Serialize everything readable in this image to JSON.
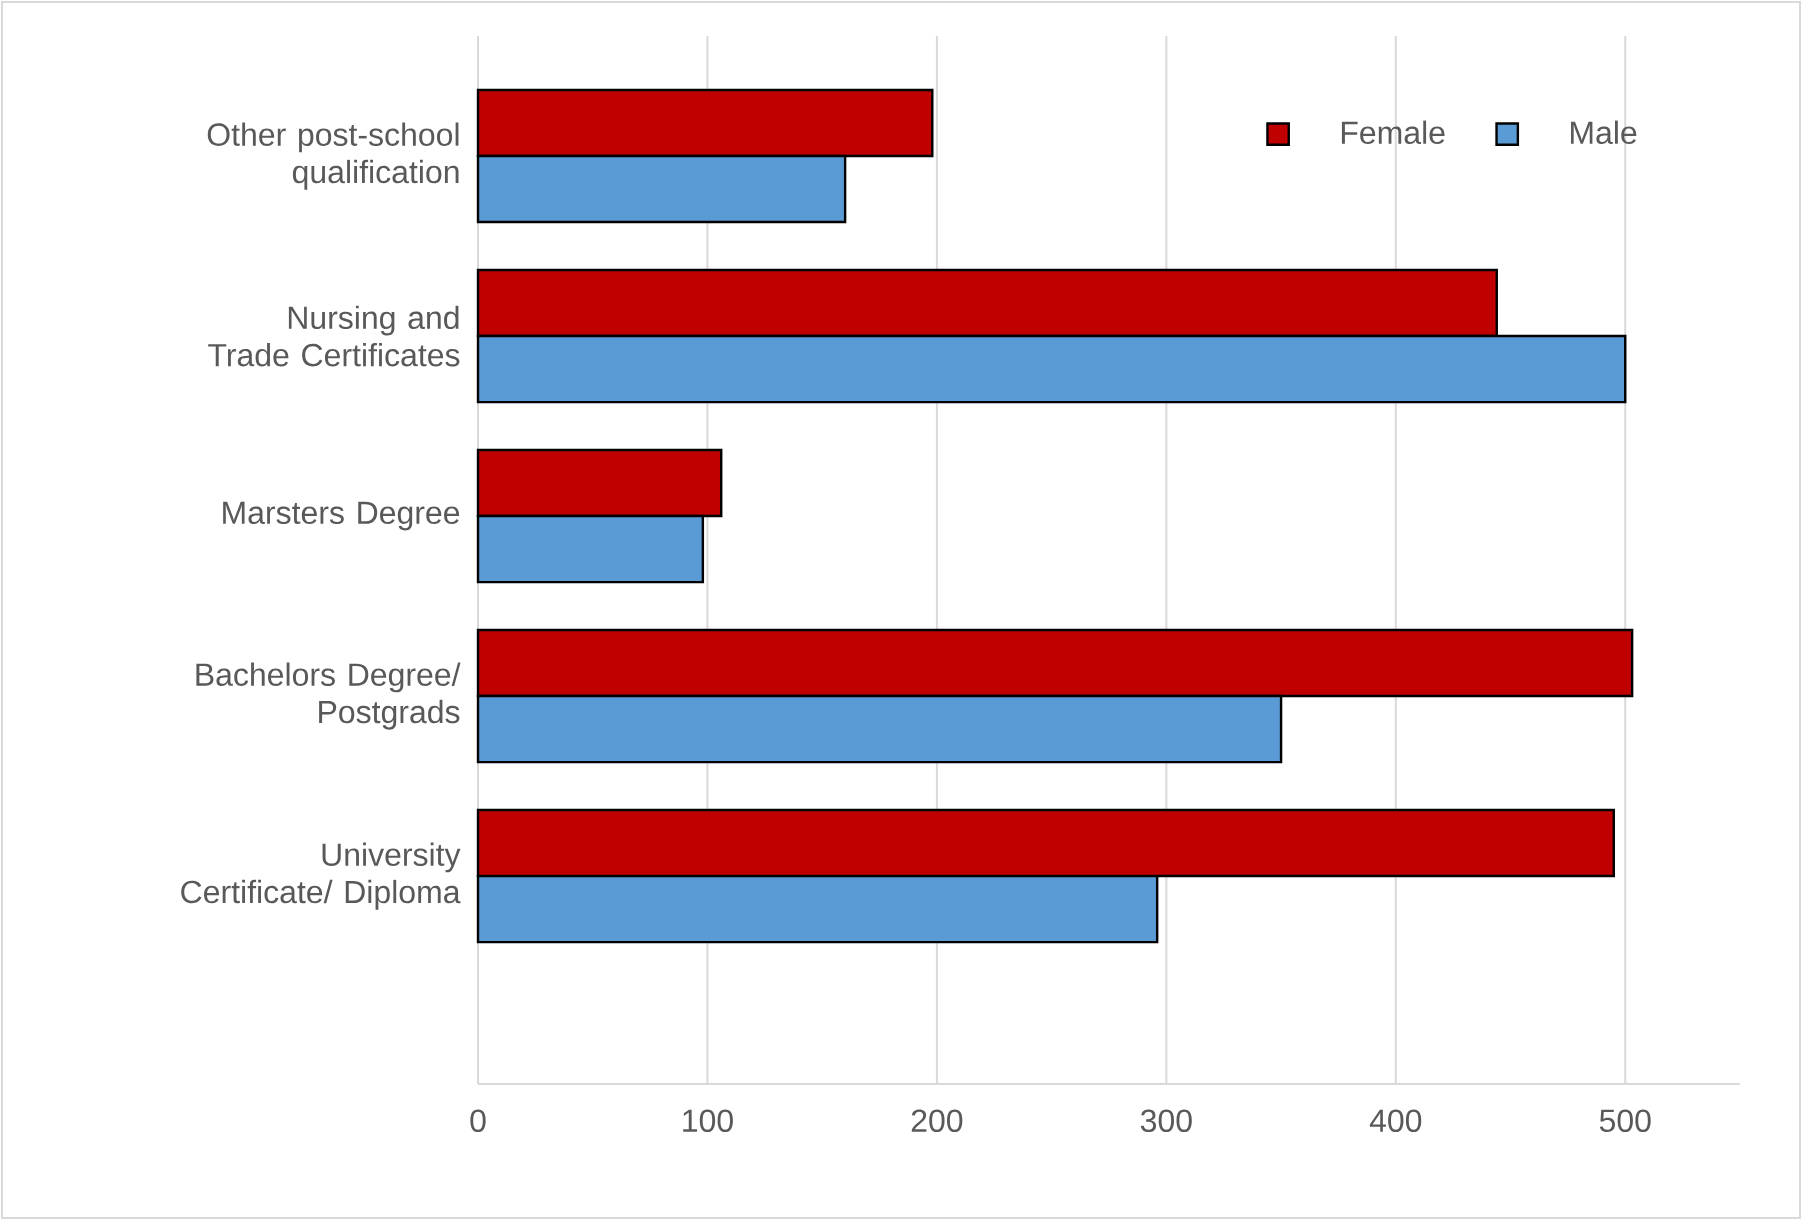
{
  "chart_data": {
    "type": "bar",
    "orientation": "horizontal",
    "categories": [
      "Other post-school qualification",
      "Nursing and Trade Certificates",
      "Marsters Degree",
      "Bachelors Degree/ Postgrads",
      "University Certificate/ Diploma"
    ],
    "series": [
      {
        "name": "Female",
        "color": "#c00000",
        "values": [
          198,
          444,
          106,
          503,
          495
        ]
      },
      {
        "name": "Male",
        "color": "#5b9bd5",
        "values": [
          160,
          500,
          98,
          350,
          296
        ]
      }
    ],
    "xlim": [
      0,
      550
    ],
    "xticks": [
      0,
      100,
      200,
      300,
      400,
      500
    ],
    "grid": "x",
    "legend": "top right"
  }
}
